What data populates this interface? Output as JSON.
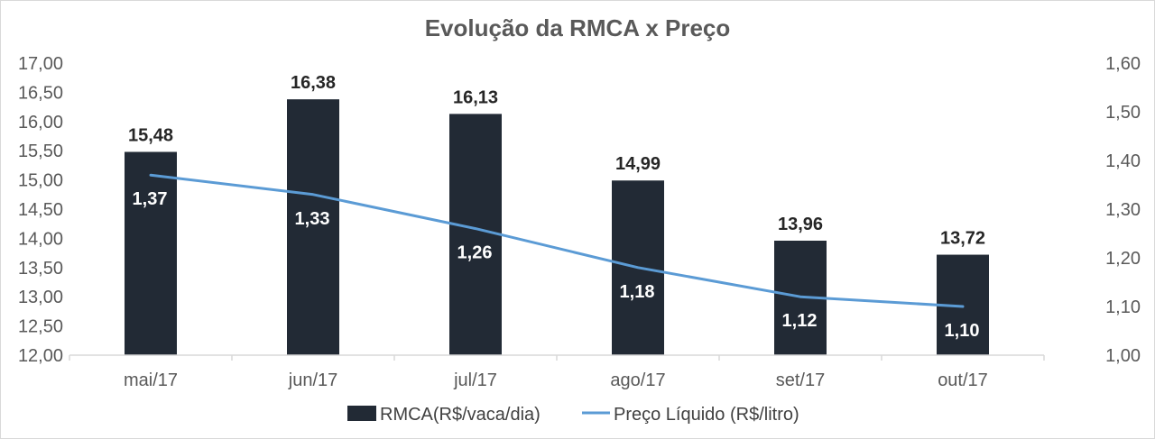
{
  "chart_data": {
    "type": "bar",
    "title": "Evolução da RMCA x Preço",
    "categories": [
      "mai/17",
      "jun/17",
      "jul/17",
      "ago/17",
      "set/17",
      "out/17"
    ],
    "series": [
      {
        "name": "RMCA(R$/vaca/dia)",
        "type": "bar",
        "axis": "left",
        "color": "#222a35",
        "values": [
          15.48,
          16.38,
          16.13,
          14.99,
          13.96,
          13.72
        ],
        "labels": [
          "15,48",
          "16,38",
          "16,13",
          "14,99",
          "13,96",
          "13,72"
        ]
      },
      {
        "name": "Preço Líquido (R$/litro)",
        "type": "line",
        "axis": "right",
        "color": "#5b9bd5",
        "values": [
          1.37,
          1.33,
          1.26,
          1.18,
          1.12,
          1.1
        ],
        "labels": [
          "1,37",
          "1,33",
          "1,26",
          "1,18",
          "1,12",
          "1,10"
        ]
      }
    ],
    "y_left": {
      "range": [
        12.0,
        17.0
      ],
      "ticks": [
        12.0,
        12.5,
        13.0,
        13.5,
        14.0,
        14.5,
        15.0,
        15.5,
        16.0,
        16.5,
        17.0
      ],
      "tick_labels": [
        "12,00",
        "12,50",
        "13,00",
        "13,50",
        "14,00",
        "14,50",
        "15,00",
        "15,50",
        "16,00",
        "16,50",
        "17,00"
      ]
    },
    "y_right": {
      "range": [
        1.0,
        1.6
      ],
      "ticks": [
        1.0,
        1.1,
        1.2,
        1.3,
        1.4,
        1.5,
        1.6
      ],
      "tick_labels": [
        "1,00",
        "1,10",
        "1,20",
        "1,30",
        "1,40",
        "1,50",
        "1,60"
      ]
    },
    "xlabel": "",
    "ylabel": "",
    "grid": false,
    "legend_position": "bottom"
  }
}
